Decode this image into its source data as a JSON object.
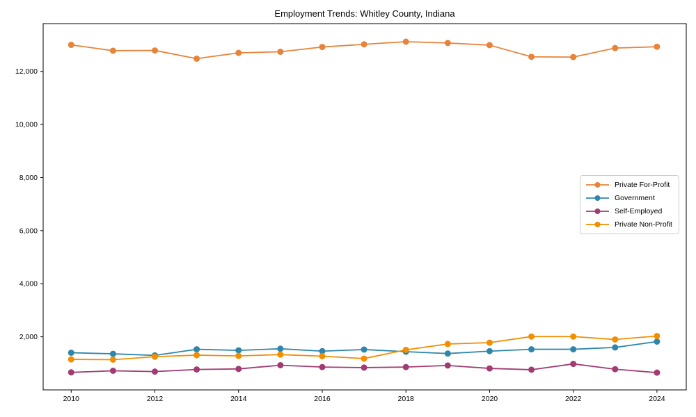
{
  "figure": {
    "background": "#ffffff",
    "axis_color": "#000000",
    "tick_label_color": "#000000"
  },
  "chart_data": {
    "type": "line",
    "title": "Employment Trends: Whitley County, Indiana",
    "xlabel": "",
    "ylabel": "",
    "x": [
      2010,
      2011,
      2012,
      2013,
      2014,
      2015,
      2016,
      2017,
      2018,
      2019,
      2020,
      2021,
      2022,
      2023,
      2024
    ],
    "x_tick_labels": [
      "2010",
      "2012",
      "2014",
      "2016",
      "2018",
      "2020",
      "2022",
      "2024"
    ],
    "x_ticks": [
      2010,
      2012,
      2014,
      2016,
      2018,
      2020,
      2022,
      2024
    ],
    "y_ticks": [
      2000,
      4000,
      6000,
      8000,
      10000,
      12000
    ],
    "y_tick_labels": [
      "2,000",
      "4,000",
      "6,000",
      "8,000",
      "10,000",
      "12,000"
    ],
    "xlim": [
      2009.33,
      2024.7
    ],
    "ylim": [
      0,
      13800
    ],
    "grid": false,
    "legend": {
      "position": "center-right",
      "entries": [
        "Private For-Profit",
        "Government",
        "Self-Employed",
        "Private Non-Profit"
      ]
    },
    "marker": "circle",
    "series": [
      {
        "name": "Private For-Profit",
        "key": "private-for-profit",
        "color": "#E8833A",
        "values": [
          13000,
          12780,
          12790,
          12480,
          12700,
          12740,
          12920,
          13020,
          13120,
          13070,
          12990,
          12550,
          12540,
          12880,
          12930
        ]
      },
      {
        "name": "Government",
        "key": "government",
        "color": "#2E86AB",
        "values": [
          1400,
          1360,
          1300,
          1530,
          1490,
          1550,
          1460,
          1520,
          1440,
          1370,
          1460,
          1530,
          1530,
          1600,
          1820
        ]
      },
      {
        "name": "Self-Employed",
        "key": "self-employed",
        "color": "#A23B72",
        "values": [
          660,
          720,
          690,
          770,
          790,
          930,
          860,
          840,
          860,
          920,
          810,
          760,
          980,
          780,
          650
        ]
      },
      {
        "name": "Private Non-Profit",
        "key": "private-non-profit",
        "color": "#F18F01",
        "values": [
          1150,
          1140,
          1250,
          1310,
          1280,
          1330,
          1270,
          1180,
          1510,
          1730,
          1780,
          2010,
          2010,
          1900,
          2030
        ]
      }
    ]
  }
}
